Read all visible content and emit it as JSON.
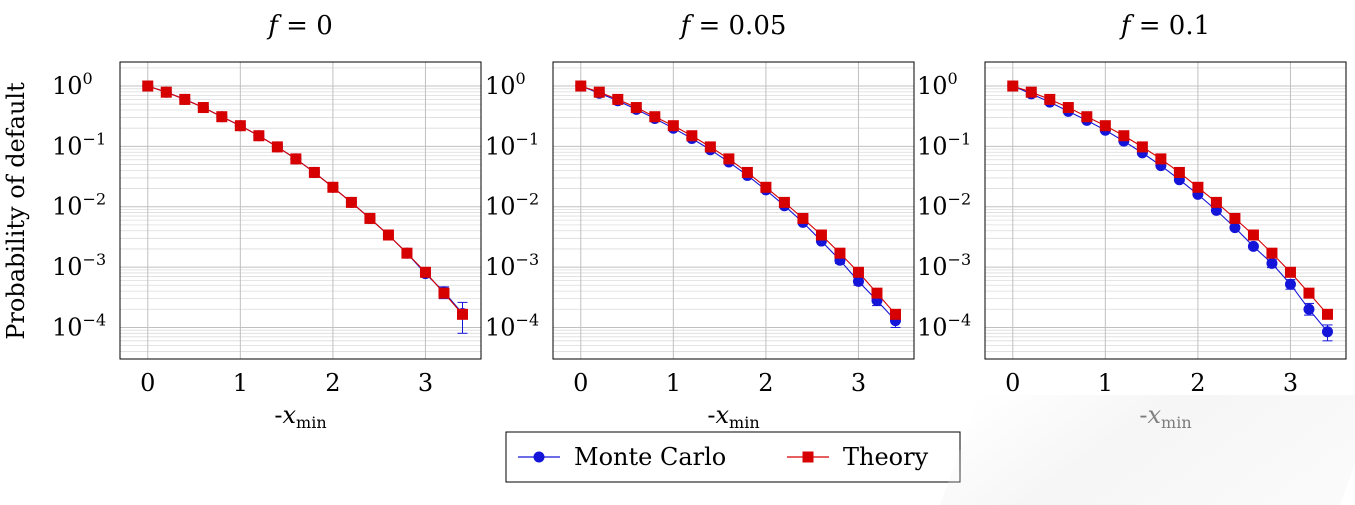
{
  "y_axis_label": "Probability of default",
  "legend": [
    {
      "label": "Monte Carlo",
      "color": "#1515d9",
      "marker": "circle"
    },
    {
      "label": "Theory",
      "color": "#d60000",
      "marker": "square"
    }
  ],
  "chart_data": [
    {
      "type": "line",
      "title_math": "f = 0",
      "xlabel_math": "-x_min",
      "ylabel": "Probability of default",
      "y_scale": "log",
      "xlim": [
        -0.3,
        3.6
      ],
      "ylim": [
        3e-05,
        2.5
      ],
      "x_ticks": [
        0,
        1,
        2,
        3
      ],
      "y_ticks": [
        1,
        0.1,
        0.01,
        0.001,
        0.0001
      ],
      "y_tick_labels": [
        {
          "b": "10",
          "e": "0"
        },
        {
          "b": "10",
          "e": "−1"
        },
        {
          "b": "10",
          "e": "−2"
        },
        {
          "b": "10",
          "e": "−3"
        },
        {
          "b": "10",
          "e": "−4"
        }
      ],
      "grid": true,
      "x": [
        0,
        0.2,
        0.4,
        0.6,
        0.8,
        1.0,
        1.2,
        1.4,
        1.6,
        1.8,
        2.0,
        2.2,
        2.4,
        2.6,
        2.8,
        3.0,
        3.2,
        3.4
      ],
      "series": [
        {
          "name": "Monte Carlo",
          "values": [
            1.0,
            0.79,
            0.6,
            0.44,
            0.31,
            0.22,
            0.15,
            0.098,
            0.062,
            0.037,
            0.021,
            0.0118,
            0.0064,
            0.0034,
            0.0017,
            0.00078,
            0.00039,
            0.00017
          ],
          "err_low": [
            1.0,
            0.79,
            0.6,
            0.44,
            0.31,
            0.22,
            0.15,
            0.098,
            0.062,
            0.037,
            0.021,
            0.0117,
            0.0063,
            0.0033,
            0.00165,
            0.00072,
            0.0003,
            8e-05
          ],
          "err_high": [
            1.0,
            0.79,
            0.6,
            0.44,
            0.31,
            0.22,
            0.15,
            0.098,
            0.062,
            0.037,
            0.021,
            0.0119,
            0.0065,
            0.0035,
            0.00175,
            0.00084,
            0.00047,
            0.00026
          ]
        },
        {
          "name": "Theory",
          "values": [
            1.0,
            0.79,
            0.6,
            0.44,
            0.31,
            0.22,
            0.15,
            0.098,
            0.062,
            0.037,
            0.021,
            0.0118,
            0.0064,
            0.0034,
            0.0017,
            0.00082,
            0.00037,
            0.000165
          ]
        }
      ]
    },
    {
      "type": "line",
      "title_math": "f = 0.05",
      "xlabel_math": "-x_min",
      "ylabel": "",
      "y_scale": "log",
      "xlim": [
        -0.3,
        3.6
      ],
      "ylim": [
        3e-05,
        2.5
      ],
      "x_ticks": [
        0,
        1,
        2,
        3
      ],
      "y_ticks": [
        1,
        0.1,
        0.01,
        0.001,
        0.0001
      ],
      "y_tick_labels": [
        {
          "b": "10",
          "e": "0"
        },
        {
          "b": "10",
          "e": "−1"
        },
        {
          "b": "10",
          "e": "−2"
        },
        {
          "b": "10",
          "e": "−3"
        },
        {
          "b": "10",
          "e": "−4"
        }
      ],
      "grid": true,
      "x": [
        0,
        0.2,
        0.4,
        0.6,
        0.8,
        1.0,
        1.2,
        1.4,
        1.6,
        1.8,
        2.0,
        2.2,
        2.4,
        2.6,
        2.8,
        3.0,
        3.2,
        3.4
      ],
      "series": [
        {
          "name": "Monte Carlo",
          "values": [
            1.0,
            0.76,
            0.57,
            0.41,
            0.29,
            0.2,
            0.135,
            0.088,
            0.055,
            0.033,
            0.019,
            0.0104,
            0.0055,
            0.0027,
            0.0013,
            0.00058,
            0.00028,
            0.00013
          ],
          "err_low": [
            1.0,
            0.76,
            0.57,
            0.41,
            0.29,
            0.2,
            0.135,
            0.088,
            0.055,
            0.033,
            0.019,
            0.0102,
            0.0053,
            0.0025,
            0.00115,
            0.0005,
            0.00023,
            0.0001
          ],
          "err_high": [
            1.0,
            0.76,
            0.57,
            0.41,
            0.29,
            0.2,
            0.135,
            0.088,
            0.055,
            0.033,
            0.019,
            0.0106,
            0.0057,
            0.0029,
            0.00145,
            0.00066,
            0.00033,
            0.00016
          ]
        },
        {
          "name": "Theory",
          "values": [
            1.0,
            0.79,
            0.6,
            0.44,
            0.31,
            0.22,
            0.15,
            0.098,
            0.062,
            0.037,
            0.021,
            0.0118,
            0.0064,
            0.0034,
            0.0017,
            0.00082,
            0.00037,
            0.000165
          ]
        }
      ]
    },
    {
      "type": "line",
      "title_math": "f = 0.1",
      "xlabel_math": "-x_min",
      "ylabel": "",
      "y_scale": "log",
      "xlim": [
        -0.3,
        3.6
      ],
      "ylim": [
        3e-05,
        2.5
      ],
      "x_ticks": [
        0,
        1,
        2,
        3
      ],
      "y_ticks": [
        1,
        0.1,
        0.01,
        0.001,
        0.0001
      ],
      "y_tick_labels": [
        {
          "b": "10",
          "e": "0"
        },
        {
          "b": "10",
          "e": "−1"
        },
        {
          "b": "10",
          "e": "−2"
        },
        {
          "b": "10",
          "e": "−3"
        },
        {
          "b": "10",
          "e": "−4"
        }
      ],
      "grid": true,
      "x": [
        0,
        0.2,
        0.4,
        0.6,
        0.8,
        1.0,
        1.2,
        1.4,
        1.6,
        1.8,
        2.0,
        2.2,
        2.4,
        2.6,
        2.8,
        3.0,
        3.2,
        3.4
      ],
      "series": [
        {
          "name": "Monte Carlo",
          "values": [
            1.0,
            0.74,
            0.54,
            0.38,
            0.27,
            0.185,
            0.122,
            0.078,
            0.048,
            0.028,
            0.016,
            0.0087,
            0.0045,
            0.0022,
            0.00115,
            0.00052,
            0.0002,
            8.5e-05
          ],
          "err_low": [
            1.0,
            0.74,
            0.54,
            0.38,
            0.27,
            0.185,
            0.122,
            0.078,
            0.048,
            0.028,
            0.016,
            0.0085,
            0.0043,
            0.002,
            0.00098,
            0.00043,
            0.00016,
            6e-05
          ],
          "err_high": [
            1.0,
            0.74,
            0.54,
            0.38,
            0.27,
            0.185,
            0.122,
            0.078,
            0.048,
            0.028,
            0.016,
            0.0089,
            0.0047,
            0.0024,
            0.00132,
            0.00062,
            0.00025,
            0.00011
          ]
        },
        {
          "name": "Theory",
          "values": [
            1.0,
            0.79,
            0.6,
            0.44,
            0.31,
            0.22,
            0.15,
            0.098,
            0.062,
            0.037,
            0.021,
            0.0118,
            0.0064,
            0.0034,
            0.0017,
            0.00082,
            0.00037,
            0.000165
          ]
        }
      ]
    }
  ]
}
